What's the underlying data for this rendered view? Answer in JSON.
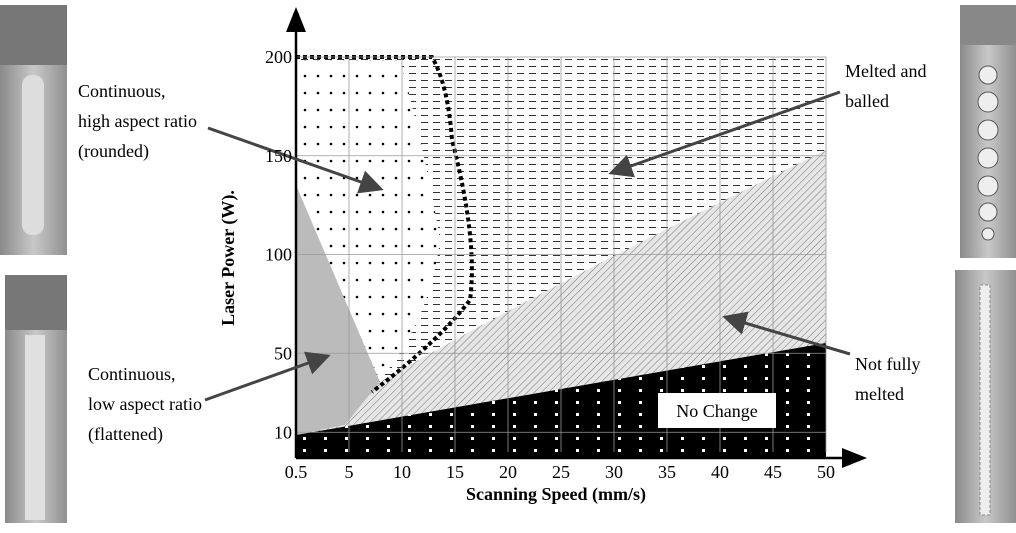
{
  "chart_data": {
    "type": "process-map",
    "x_label": "Scanning Speed (mm/s)",
    "y_label": "Laser Power (W).",
    "categories": [
      "0.5",
      "5",
      "10",
      "15",
      "20",
      "25",
      "30",
      "35",
      "40",
      "45",
      "50"
    ],
    "ylim": [
      0,
      200
    ],
    "yticks": [
      10,
      50,
      100,
      150,
      200
    ],
    "grid": true,
    "annotations": [
      {
        "lines": [
          "Continuous,",
          "high aspect ratio",
          "(rounded)"
        ]
      },
      {
        "lines": [
          "Melted and",
          "balled"
        ]
      },
      {
        "lines": [
          "Continuous,",
          "low aspect ratio",
          "(flattened)"
        ]
      },
      {
        "lines": [
          "Not fully",
          "melted"
        ]
      },
      {
        "lines": [
          "No Change"
        ]
      }
    ]
  }
}
